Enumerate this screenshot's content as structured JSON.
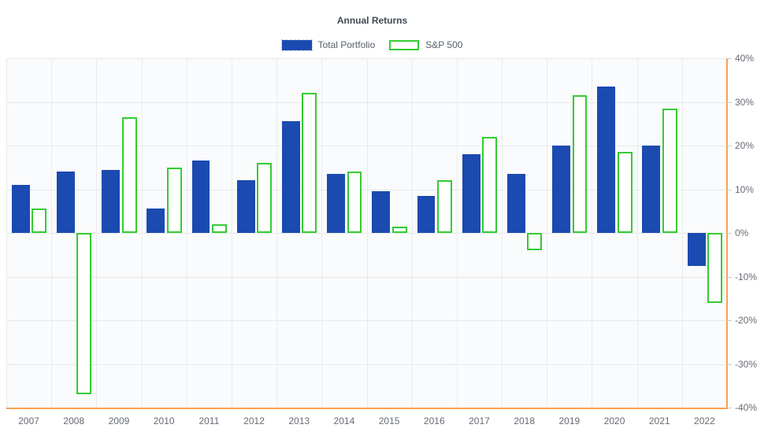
{
  "title": "Annual Returns",
  "colors": {
    "portfolio_blue": "#1b4ab0",
    "sp500_green": "#33cc33",
    "axis_orange": "#f8a055",
    "grid_gray": "#e6e8ea",
    "label_gray": "#666b73"
  },
  "legend": {
    "items": [
      {
        "label": "Total Portfolio"
      },
      {
        "label": "S&P 500"
      }
    ]
  },
  "y_axis": {
    "tick_labels": [
      "40%",
      "30%",
      "20%",
      "10%",
      "0%",
      "-10%",
      "-20%",
      "-30%",
      "-40%"
    ]
  },
  "chart_data": {
    "type": "bar",
    "title": "Annual Returns",
    "categories": [
      "2007",
      "2008",
      "2009",
      "2010",
      "2011",
      "2012",
      "2013",
      "2014",
      "2015",
      "2016",
      "2017",
      "2018",
      "2019",
      "2020",
      "2021",
      "2022"
    ],
    "series": [
      {
        "name": "Total Portfolio",
        "color": "#1b4ab0",
        "values": [
          11,
          14,
          14.5,
          5.5,
          16.5,
          12,
          25.5,
          13.5,
          9.5,
          8.5,
          18,
          13.5,
          20,
          33.5,
          20,
          -7.5
        ]
      },
      {
        "name": "S&P 500",
        "color": "#33cc33",
        "values": [
          5.5,
          -37,
          26.5,
          15,
          2,
          16,
          32,
          14,
          1.5,
          12,
          22,
          -4,
          31.5,
          18.5,
          28.5,
          -16
        ]
      }
    ],
    "ylabel": "",
    "xlabel": "",
    "ylim": [
      -40,
      40
    ],
    "y_tick_step": 10,
    "grid": true,
    "legend_position": "top"
  }
}
